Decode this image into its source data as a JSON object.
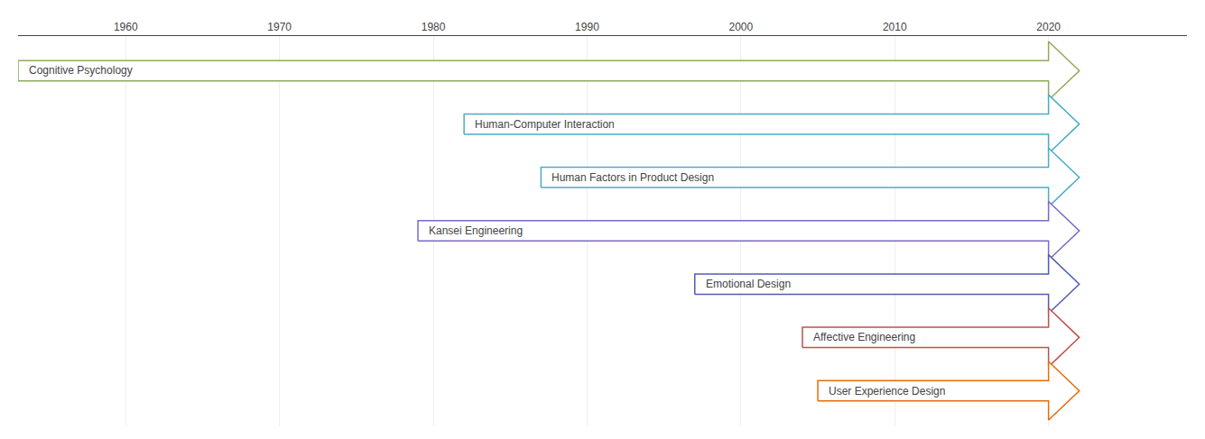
{
  "chart_data": {
    "type": "timeline",
    "categories": [
      "Cognitive Psychology",
      "Human-Computer Interaction",
      "Human Factors in Product Design",
      "Kansei Engineering",
      "Emotional Design",
      "Affective Engineering",
      "User Experience Design"
    ],
    "start": [
      1953,
      1982,
      1987,
      1979,
      1997,
      2004,
      2005
    ],
    "end": [
      2022,
      2022,
      2022,
      2022,
      2022,
      2022,
      2022
    ],
    "colors": [
      "#8faa5b",
      "#4bacc6",
      "#4bacc6",
      "#7b68c8",
      "#4f5db5",
      "#c0504d",
      "#e36c09"
    ],
    "xlim": [
      1953,
      2029
    ],
    "xticks": [
      1960,
      1970,
      1980,
      1990,
      2000,
      2010,
      2020
    ],
    "grid": true,
    "tick_labels": "x"
  }
}
